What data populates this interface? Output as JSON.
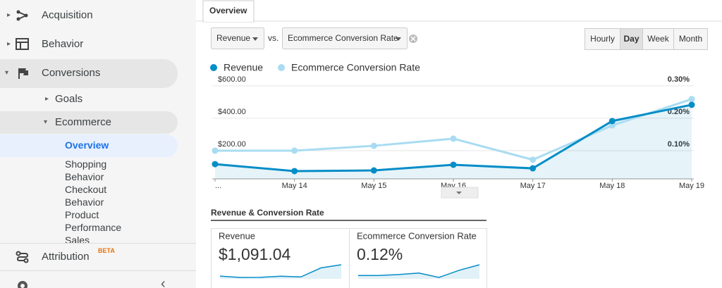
{
  "sidebar": {
    "items": [
      "Acquisition",
      "Behavior",
      "Conversions",
      "Goals",
      "Ecommerce",
      "Overview",
      "Shopping Behavior",
      "Checkout Behavior",
      "Product Performance",
      "Sales"
    ],
    "attribution": "Attribution",
    "badge": "BETA"
  },
  "tab": "Overview",
  "controls": {
    "metric": "Revenue",
    "vs": "vs.",
    "compare": "Ecommerce Conversion Rate",
    "periods": [
      "Hourly",
      "Day",
      "Week",
      "Month"
    ],
    "selected_period": "Day"
  },
  "chart_data": {
    "type": "line",
    "categories": [
      "...",
      "May 14",
      "May 15",
      "May 16",
      "May 17",
      "May 18",
      "May 19"
    ],
    "series": [
      {
        "name": "Revenue",
        "color": "#058dc7",
        "values": [
          117,
          74,
          78,
          113,
          91,
          383,
          483
        ]
      },
      {
        "name": "Ecommerce Conversion Rate",
        "color": "#a9dcf2",
        "axis": "y2",
        "values": [
          0.1,
          0.1,
          0.115,
          0.137,
          0.072,
          0.178,
          0.259
        ]
      }
    ],
    "ylim": [
      0,
      630
    ],
    "yticks": [
      {
        "value": 200,
        "label": "$200.00"
      },
      {
        "value": 400,
        "label": "$400.00"
      },
      {
        "value": 600,
        "label": "$600.00"
      }
    ],
    "y2lim": [
      0,
      0.315
    ],
    "y2ticks": [
      {
        "value": 0.1,
        "label": "0.10%"
      },
      {
        "value": 0.2,
        "label": "0.20%"
      },
      {
        "value": 0.3,
        "label": "0.30%"
      }
    ],
    "grid": true,
    "area": true
  },
  "section_title": "Revenue & Conversion Rate",
  "scorecards": [
    {
      "label": "Revenue",
      "value": "$1,091.04"
    },
    {
      "label": "Ecommerce Conversion Rate",
      "value": "0.12%"
    }
  ]
}
